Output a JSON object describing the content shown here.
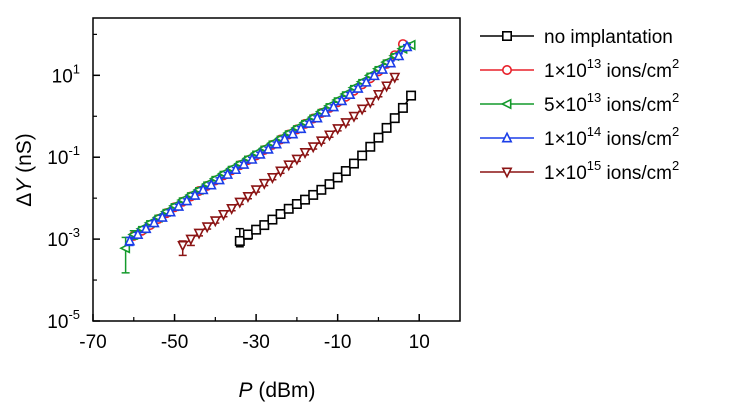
{
  "chart_data": {
    "type": "scatter",
    "title": "",
    "xlabel": {
      "var": "P",
      "unit": " (dBm)"
    },
    "ylabel": {
      "delta": "Δ",
      "var": "Y",
      "unit": " (nS)"
    },
    "x_ticks": [
      -70,
      -50,
      -30,
      -10,
      10
    ],
    "x_tick_labels": [
      "-70",
      "-50",
      "-30",
      "-10",
      "10"
    ],
    "y_ticks": [
      -5,
      -3,
      -1,
      1
    ],
    "y_tick_labels": [
      {
        "base": "10",
        "exp": "-5"
      },
      {
        "base": "10",
        "exp": "-3"
      },
      {
        "base": "10",
        "exp": "-1"
      },
      {
        "base": "10",
        "exp": "1"
      }
    ],
    "xlim": [
      -70,
      20
    ],
    "ylim_log10": [
      -5,
      2.4
    ],
    "y_scale": "log",
    "grid": false,
    "legend_position": "right",
    "series": [
      {
        "name": "no implantation",
        "label": {
          "text": "no implantation"
        },
        "color": "#000000",
        "marker": "square",
        "x": [
          -34,
          -32,
          -30,
          -28,
          -26,
          -24,
          -22,
          -20,
          -18,
          -16,
          -14,
          -12,
          -10,
          -8,
          -6,
          -4,
          -2,
          0,
          2,
          4,
          6,
          8
        ],
        "y": [
          0.0009,
          0.0013,
          0.0017,
          0.0022,
          0.003,
          0.0041,
          0.0055,
          0.0072,
          0.0092,
          0.012,
          0.016,
          0.022,
          0.032,
          0.046,
          0.07,
          0.11,
          0.18,
          0.3,
          0.52,
          0.9,
          1.6,
          3.2
        ],
        "err_low": [
          0.00025,
          0.0003,
          0.0003,
          0.0003,
          0.0003,
          0.0004,
          0.0005,
          0.0006,
          0.0008,
          0.001,
          0.0013,
          0.0018,
          0.0025,
          0.004,
          0.006,
          0.009,
          0.015,
          0.025,
          0.04,
          0.07,
          0.12,
          0.2
        ],
        "err_high": [
          0.0009,
          0.0003,
          0.0003,
          0.0003,
          0.0003,
          0.0004,
          0.0005,
          0.0006,
          0.0008,
          0.001,
          0.0013,
          0.0018,
          0.0025,
          0.004,
          0.006,
          0.009,
          0.015,
          0.025,
          0.04,
          0.07,
          0.12,
          0.2
        ]
      },
      {
        "name": "1×10^13 ions/cm^2",
        "label": {
          "pre": "1×10",
          "exp": "13",
          "post": " ions/cm",
          "exp2": "2"
        },
        "color": "#e8202a",
        "marker": "circle",
        "x": [
          -60,
          -58,
          -56,
          -54,
          -52,
          -50,
          -48,
          -46,
          -44,
          -42,
          -40,
          -38,
          -36,
          -34,
          -32,
          -30,
          -28,
          -26,
          -24,
          -22,
          -20,
          -18,
          -16,
          -14,
          -12,
          -10,
          -8,
          -6,
          -4,
          -2,
          0,
          2,
          4,
          6
        ],
        "y": [
          0.0012,
          0.0016,
          0.0022,
          0.0031,
          0.0043,
          0.006,
          0.0082,
          0.011,
          0.015,
          0.02,
          0.027,
          0.036,
          0.048,
          0.064,
          0.085,
          0.11,
          0.15,
          0.2,
          0.27,
          0.36,
          0.48,
          0.65,
          0.88,
          1.2,
          1.6,
          2.2,
          3.0,
          4.2,
          6.0,
          8.5,
          12.5,
          19,
          31,
          58
        ]
      },
      {
        "name": "5×10^13 ions/cm^2",
        "label": {
          "pre": "5×10",
          "exp": "13",
          "post": " ions/cm",
          "exp2": "2"
        },
        "color": "#149a2c",
        "marker": "triangle-left",
        "x": [
          -62,
          -60,
          -58,
          -56,
          -54,
          -52,
          -50,
          -48,
          -46,
          -44,
          -42,
          -40,
          -38,
          -36,
          -34,
          -32,
          -30,
          -28,
          -26,
          -24,
          -22,
          -20,
          -18,
          -16,
          -14,
          -12,
          -10,
          -8,
          -6,
          -4,
          -2,
          0,
          2,
          4,
          6,
          8
        ],
        "y": [
          0.0006,
          0.0013,
          0.0018,
          0.0025,
          0.0034,
          0.0047,
          0.0065,
          0.009,
          0.012,
          0.016,
          0.022,
          0.03,
          0.04,
          0.053,
          0.07,
          0.094,
          0.125,
          0.165,
          0.22,
          0.29,
          0.39,
          0.52,
          0.7,
          0.95,
          1.3,
          1.8,
          2.5,
          3.5,
          5.0,
          7.0,
          10.0,
          14.5,
          21,
          30,
          45,
          55
        ],
        "err_low": [
          0.00045,
          0.0003
        ],
        "err_high": [
          0.0005,
          0.0003
        ]
      },
      {
        "name": "1×10^14 ions/cm^2",
        "label": {
          "pre": "1×10",
          "exp": "14",
          "post": " ions/cm",
          "exp2": "2"
        },
        "color": "#1b3ee8",
        "marker": "triangle-up",
        "x": [
          -61,
          -59,
          -57,
          -55,
          -53,
          -51,
          -49,
          -47,
          -45,
          -43,
          -41,
          -39,
          -37,
          -35,
          -33,
          -31,
          -29,
          -27,
          -25,
          -23,
          -21,
          -19,
          -17,
          -15,
          -13,
          -11,
          -9,
          -7,
          -5,
          -3,
          -1,
          1,
          3,
          5,
          7
        ],
        "y": [
          0.0009,
          0.0013,
          0.0018,
          0.0025,
          0.0034,
          0.0046,
          0.0063,
          0.0086,
          0.0117,
          0.016,
          0.021,
          0.028,
          0.038,
          0.05,
          0.067,
          0.089,
          0.118,
          0.157,
          0.21,
          0.28,
          0.37,
          0.5,
          0.67,
          0.91,
          1.25,
          1.7,
          2.4,
          3.4,
          4.8,
          6.8,
          9.8,
          14,
          20,
          30,
          50
        ],
        "err_low": [
          0.0002
        ],
        "err_high": [
          0.0002
        ]
      },
      {
        "name": "1×10^15 ions/cm^2",
        "label": {
          "pre": "1×10",
          "exp": "15",
          "post": " ions/cm",
          "exp2": "2"
        },
        "color": "#8b1414",
        "marker": "triangle-down",
        "x": [
          -48,
          -46,
          -44,
          -42,
          -40,
          -38,
          -36,
          -34,
          -32,
          -30,
          -28,
          -26,
          -24,
          -22,
          -20,
          -18,
          -16,
          -14,
          -12,
          -10,
          -8,
          -6,
          -4,
          -2,
          0,
          2,
          4
        ],
        "y": [
          0.0007,
          0.001,
          0.0014,
          0.002,
          0.0028,
          0.004,
          0.0056,
          0.008,
          0.011,
          0.016,
          0.023,
          0.032,
          0.046,
          0.065,
          0.09,
          0.13,
          0.18,
          0.25,
          0.35,
          0.5,
          0.7,
          1.0,
          1.5,
          2.2,
          3.4,
          5.5,
          9.0
        ],
        "err_low": [
          0.0003,
          0.0003,
          0.0002
        ],
        "err_high": [
          0.0002,
          0.0002,
          0.0002
        ]
      }
    ]
  }
}
